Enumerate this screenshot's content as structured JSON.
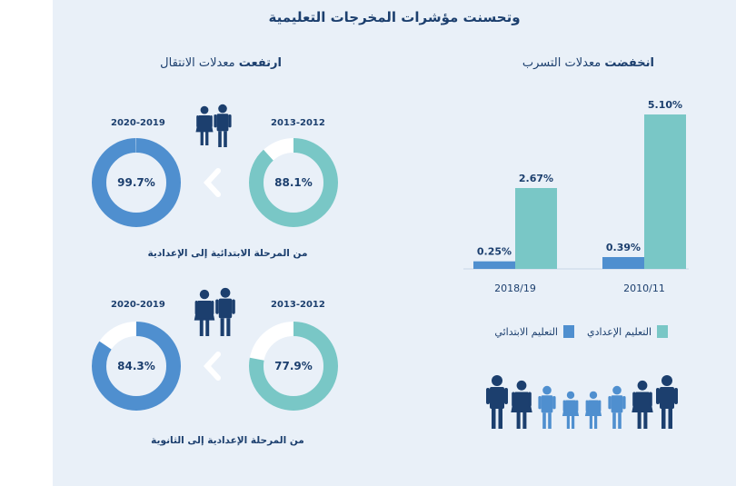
{
  "title": "وتحسنت مؤشرات المخرجات التعليمية",
  "left_heading": {
    "bold": "ارتفعت",
    "rest": "معدلات الانتقال"
  },
  "right_heading": {
    "bold": "انخفضت",
    "rest": "معدلات التسرب"
  },
  "transition_groups": [
    {
      "caption": "من المرحلة الابتدائية إلى الإعدادية",
      "old_year": "2013-2012",
      "old_value": 88.1,
      "old_label": "88.1%",
      "new_year": "2020-2019",
      "new_value": 99.7,
      "new_label": "99.7%"
    },
    {
      "caption": "من المرحلة الإعدادية إلى الثانوية",
      "old_year": "2013-2012",
      "old_value": 77.9,
      "old_label": "77.9%",
      "new_year": "2020-2019",
      "new_value": 84.3,
      "new_label": "84.3%"
    }
  ],
  "legend": {
    "preparatory": "التعليم الإعدادي",
    "primary": "التعليم الابتدائي"
  },
  "colors": {
    "teal": "#79c7c6",
    "blue": "#4f8fcf",
    "navy": "#1c3f6e",
    "track": "#ffffff",
    "panel": "#e9f0f8"
  },
  "chart_data": [
    {
      "type": "bar",
      "title": "انخفضت معدلات التسرب",
      "categories": [
        "2018/19",
        "2010/11"
      ],
      "series": [
        {
          "name": "التعليم الابتدائي",
          "values": [
            0.25,
            0.39
          ],
          "labels": [
            "0.25%",
            "0.39%"
          ]
        },
        {
          "name": "التعليم الإعدادي",
          "values": [
            2.67,
            5.1
          ],
          "labels": [
            "2.67%",
            "5.10%"
          ]
        }
      ],
      "ylim": [
        0,
        5.5
      ],
      "xlabel": "",
      "ylabel": "",
      "grid": false
    },
    {
      "type": "pie",
      "title": "2013-2012",
      "values": [
        88.1,
        11.9
      ],
      "labels": [
        "88.1%",
        ""
      ]
    },
    {
      "type": "pie",
      "title": "2020-2019",
      "values": [
        99.7,
        0.3
      ],
      "labels": [
        "99.7%",
        ""
      ]
    },
    {
      "type": "pie",
      "title": "2013-2012",
      "values": [
        77.9,
        22.1
      ],
      "labels": [
        "77.9%",
        ""
      ]
    },
    {
      "type": "pie",
      "title": "2020-2019",
      "values": [
        84.3,
        15.7
      ],
      "labels": [
        "84.3%",
        ""
      ]
    }
  ]
}
